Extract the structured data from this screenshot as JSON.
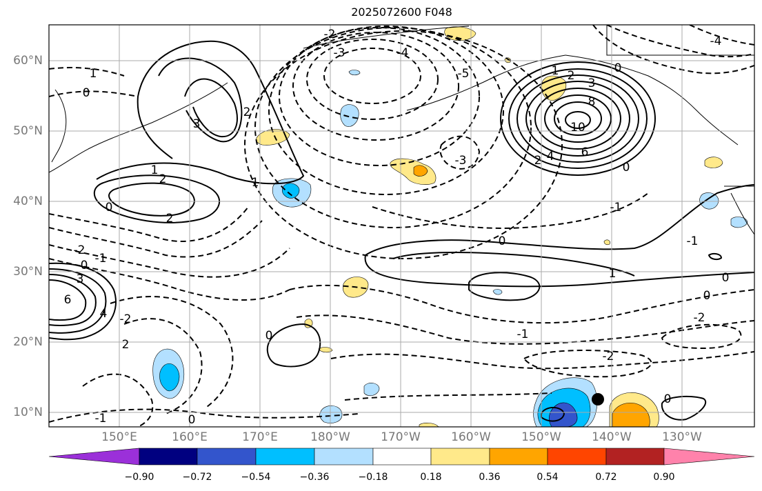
{
  "title": "2025072600 F048",
  "map": {
    "lat_labels": [
      "60°N",
      "50°N",
      "40°N",
      "30°N",
      "20°N",
      "10°N"
    ],
    "lon_labels": [
      "150°E",
      "160°E",
      "170°E",
      "180°W",
      "170°W",
      "160°W",
      "150°W",
      "140°W",
      "130°W"
    ],
    "grid": true,
    "contour_labels": [
      {
        "text": "1"
      },
      {
        "text": "0"
      },
      {
        "text": "3"
      },
      {
        "text": "2"
      },
      {
        "text": "-2"
      },
      {
        "text": "-3"
      },
      {
        "text": "-4"
      },
      {
        "text": "-5"
      },
      {
        "text": "1"
      },
      {
        "text": "2"
      },
      {
        "text": "3"
      },
      {
        "text": "8"
      },
      {
        "text": "10"
      },
      {
        "text": "6"
      },
      {
        "text": "4"
      },
      {
        "text": "2"
      },
      {
        "text": "0"
      },
      {
        "text": "-3"
      },
      {
        "text": "1"
      },
      {
        "text": "2"
      },
      {
        "text": "2"
      },
      {
        "text": "0"
      },
      {
        "text": "-2"
      },
      {
        "text": "-1"
      },
      {
        "text": "0"
      },
      {
        "text": "3"
      },
      {
        "text": "6"
      },
      {
        "text": "4"
      },
      {
        "text": "-2"
      },
      {
        "text": "2"
      },
      {
        "text": "0"
      },
      {
        "text": "1"
      },
      {
        "text": "0"
      },
      {
        "text": "0"
      },
      {
        "text": "-2"
      },
      {
        "text": "-1"
      },
      {
        "text": "-2"
      },
      {
        "text": "-1"
      },
      {
        "text": "0"
      },
      {
        "text": "0"
      },
      {
        "text": "-1"
      },
      {
        "text": "-4"
      },
      {
        "text": "0"
      },
      {
        "text": "-1"
      },
      {
        "text": "0"
      },
      {
        "text": "1"
      }
    ]
  },
  "colorbar": {
    "labels": [
      "−0.90",
      "−0.72",
      "−0.54",
      "−0.36",
      "−0.18",
      "0.18",
      "0.36",
      "0.54",
      "0.72",
      "0.90"
    ],
    "colors": [
      "#9b30d9",
      "#000080",
      "#3355cc",
      "#00bfff",
      "#b3e0ff",
      "#ffffff",
      "#ffe98a",
      "#ffa500",
      "#ff4500",
      "#b22222",
      "#ff82ab"
    ]
  }
}
